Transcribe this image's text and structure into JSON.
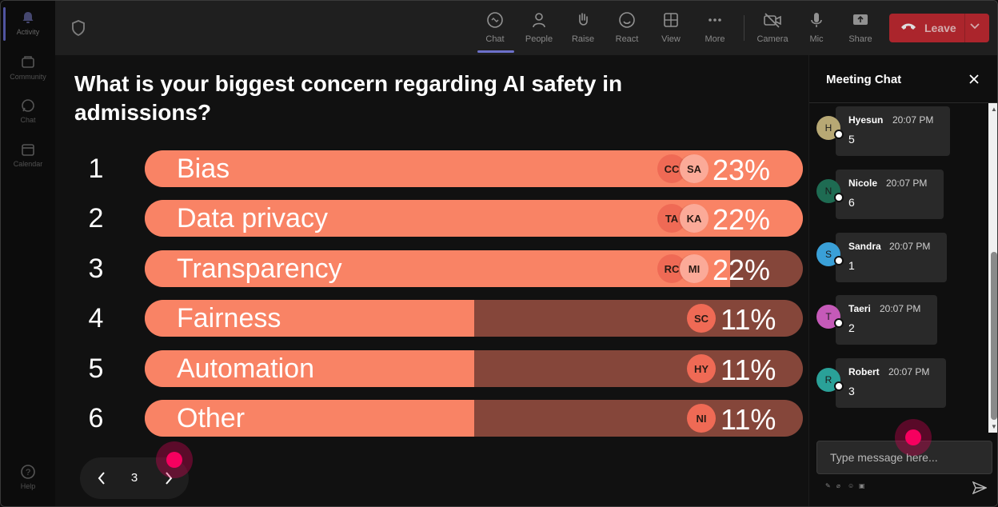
{
  "rail": {
    "items": [
      {
        "label": "Activity",
        "icon": "bell-icon",
        "active": true
      },
      {
        "label": "Community",
        "icon": "community-icon"
      },
      {
        "label": "Chat",
        "icon": "chat-icon"
      },
      {
        "label": "Calendar",
        "icon": "calendar-icon"
      }
    ],
    "help_label": "Help"
  },
  "toolbar": {
    "buttons": [
      {
        "label": "Chat",
        "icon": "chat-icon"
      },
      {
        "label": "People",
        "icon": "people-icon"
      },
      {
        "label": "Raise",
        "icon": "raise-hand-icon"
      },
      {
        "label": "React",
        "icon": "smile-icon"
      },
      {
        "label": "View",
        "icon": "grid-icon"
      },
      {
        "label": "More",
        "icon": "more-icon"
      },
      {
        "label": "Camera",
        "icon": "camera-off-icon"
      },
      {
        "label": "Mic",
        "icon": "mic-icon"
      },
      {
        "label": "Share",
        "icon": "share-icon"
      }
    ],
    "leave_label": "Leave",
    "leave_color": "#c4272f"
  },
  "poll": {
    "question": "What is your biggest concern regarding AI safety in admissions?",
    "bar_color": "#f98365",
    "track_color": "#85463a",
    "options": [
      {
        "rank": "1",
        "label": "Bias",
        "percent": "23%",
        "fill_fraction": 1.0,
        "avatars": [
          "CC",
          "SA"
        ]
      },
      {
        "rank": "2",
        "label": "Data privacy",
        "percent": "22%",
        "fill_fraction": 1.0,
        "avatars": [
          "TA",
          "KA"
        ]
      },
      {
        "rank": "3",
        "label": "Transparency",
        "percent": "22%",
        "fill_fraction": 0.89,
        "avatars": [
          "RC",
          "MI"
        ]
      },
      {
        "rank": "4",
        "label": "Fairness",
        "percent": "11%",
        "fill_fraction": 0.5,
        "avatars": [
          "SC"
        ]
      },
      {
        "rank": "5",
        "label": "Automation",
        "percent": "11%",
        "fill_fraction": 0.5,
        "avatars": [
          "HY"
        ]
      },
      {
        "rank": "6",
        "label": "Other",
        "percent": "11%",
        "fill_fraction": 0.5,
        "avatars": [
          "NI"
        ]
      }
    ]
  },
  "pager": {
    "page": "3"
  },
  "chat": {
    "title": "Meeting Chat",
    "messages": [
      {
        "initial": "H",
        "name": "Hyesun",
        "time": "20:07 PM",
        "text": "5",
        "color": "#b7a874"
      },
      {
        "initial": "N",
        "name": "Nicole",
        "time": "20:07 PM",
        "text": "6",
        "color": "#1e6b52"
      },
      {
        "initial": "S",
        "name": "Sandra",
        "time": "20:07 PM",
        "text": "1",
        "color": "#3aa0d8"
      },
      {
        "initial": "T",
        "name": "Taeri",
        "time": "20:07 PM",
        "text": "2",
        "color": "#c55ab8"
      },
      {
        "initial": "R",
        "name": "Robert",
        "time": "20:07 PM",
        "text": "3",
        "color": "#2aa198"
      }
    ],
    "input_placeholder": "Type message here..."
  }
}
